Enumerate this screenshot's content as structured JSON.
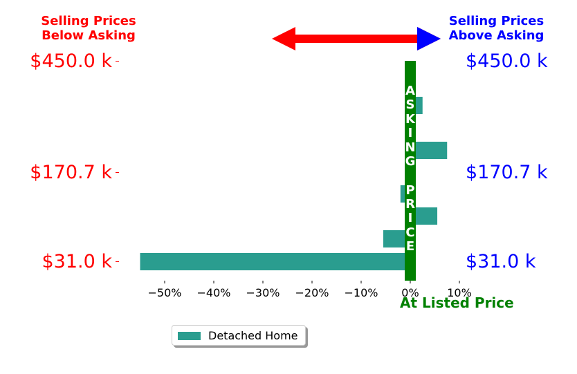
{
  "header_left": [
    "Selling Prices",
    "Below Asking"
  ],
  "header_right": [
    "Selling Prices",
    "Above Asking"
  ],
  "price_labels": [
    "$450.0 k",
    "$170.7 k",
    "$31.0 k"
  ],
  "asking_price_text": "ASKING PRICE",
  "at_listed_label": "At Listed Price",
  "colors": {
    "bar": "#2a9d8f",
    "asking_line": "#008000",
    "below": "#ff0000",
    "above": "#0000ff"
  },
  "chart_data": {
    "type": "bar",
    "orientation": "horizontal",
    "series": [
      {
        "name": "Detached Home",
        "values": [
          2.5,
          7.5,
          -2.0,
          5.5,
          -5.5,
          -55.0
        ]
      }
    ],
    "xlabel": "",
    "ylabel": "",
    "xlim": [
      -56,
      12
    ],
    "x_ticks": [
      "−50%",
      "−40%",
      "−30%",
      "−20%",
      "−10%",
      "0%",
      "10%"
    ],
    "x_tick_values": [
      -50,
      -40,
      -30,
      -20,
      -10,
      0,
      10
    ],
    "y_tick_labels": [
      "$450.0 k",
      "$170.7 k",
      "$31.0 k"
    ],
    "legend": "bottom-left",
    "grid": false
  }
}
